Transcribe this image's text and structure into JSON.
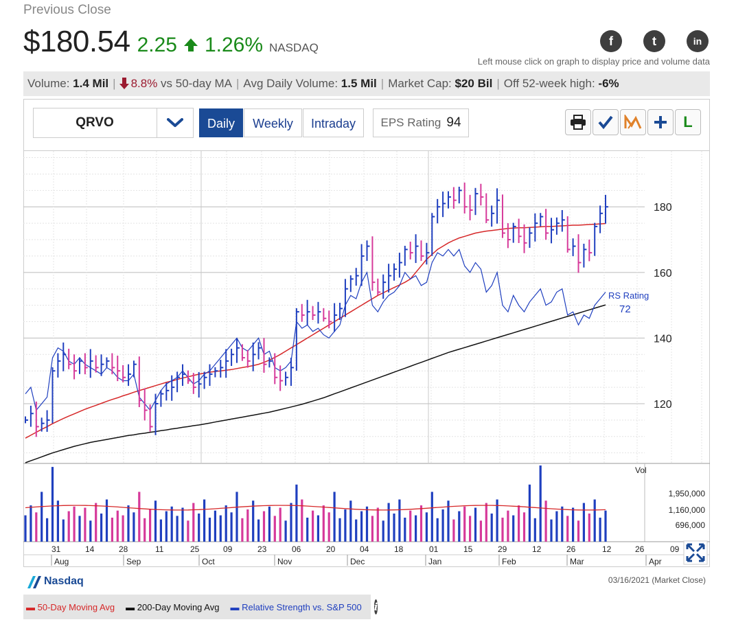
{
  "header": {
    "label": "Previous Close",
    "price": "$180.54",
    "change": "2.25",
    "change_pct": "1.26%",
    "exchange": "NASDAQ",
    "hint": "Left mouse click on graph to display price and volume data",
    "social": [
      {
        "name": "facebook-icon",
        "glyph": "f"
      },
      {
        "name": "twitter-icon",
        "glyph": "t"
      },
      {
        "name": "linkedin-icon",
        "glyph": "in"
      }
    ]
  },
  "stats": {
    "volume_label": "Volume:",
    "volume_value": "1.4 Mil",
    "vs_ma_value": "8.8%",
    "vs_ma_label": "vs 50-day MA",
    "avg_vol_label": "Avg Daily Volume:",
    "avg_vol_value": "1.5 Mil",
    "mcap_label": "Market Cap:",
    "mcap_value": "$20 Bil",
    "off_high_label": "Off 52-week high:",
    "off_high_value": "-6%"
  },
  "toolbar": {
    "symbol": "QRVO",
    "tabs": [
      "Daily",
      "Weekly",
      "Intraday"
    ],
    "active_tab": "Daily",
    "eps_label": "EPS Rating",
    "eps_value": "94",
    "tools": [
      "print-icon",
      "checkmark-icon",
      "marketsmith-icon",
      "plus-icon",
      "leaderboard-icon"
    ],
    "tool_l": "L"
  },
  "chart_data": {
    "type": "line",
    "price_axis": {
      "ticks": [
        "180",
        "160",
        "140",
        "120"
      ],
      "values": [
        180,
        160,
        140,
        120
      ],
      "ylim": [
        102,
        197
      ]
    },
    "volume_axis": {
      "title": "Vol",
      "ticks": [
        "1,950,000",
        "1,160,000",
        "696,000"
      ]
    },
    "x_day_labels": [
      "31",
      "14",
      "28",
      "11",
      "25",
      "09",
      "23",
      "06",
      "20",
      "04",
      "18",
      "01",
      "15",
      "29",
      "12",
      "26",
      "12",
      "26",
      "09"
    ],
    "x_month_labels": [
      "Aug",
      "Sep",
      "Oct",
      "Nov",
      "Dec",
      "Jan",
      "Feb",
      "Mar",
      "Apr"
    ],
    "rs_label": "RS Rating",
    "rs_value": "72",
    "price_close": [
      115,
      117,
      113,
      114,
      115,
      130,
      133,
      135,
      132,
      130,
      133,
      131,
      133,
      131,
      132,
      133,
      131,
      130,
      128,
      129,
      132,
      121,
      118,
      113,
      120,
      123,
      124,
      125,
      128,
      129,
      127,
      125,
      126,
      128,
      129,
      130,
      131,
      133,
      135,
      137,
      134,
      133,
      135,
      137,
      132,
      133,
      128,
      127,
      128,
      131,
      148,
      147,
      148,
      147,
      148,
      146,
      145,
      147,
      149,
      155,
      158,
      159,
      165,
      168,
      157,
      154,
      157,
      159,
      161,
      163,
      167,
      166,
      168,
      165,
      166,
      177,
      180,
      181,
      183,
      182,
      185,
      180,
      179,
      184,
      183,
      176,
      178,
      182,
      172,
      170,
      174,
      171,
      169,
      172,
      175,
      177,
      172,
      173,
      175,
      176,
      167,
      168,
      163,
      167,
      166,
      174,
      178,
      180
    ],
    "ma50": [
      109.5,
      110.4,
      111.3,
      112.2,
      113.0,
      113.9,
      114.7,
      115.5,
      116.2,
      116.9,
      117.6,
      118.3,
      118.9,
      119.5,
      120.1,
      120.7,
      121.3,
      121.8,
      122.4,
      122.9,
      123.5,
      124.0,
      124.5,
      125.0,
      125.5,
      126.0,
      126.5,
      126.9,
      127.4,
      127.8,
      128.2,
      128.6,
      129.0,
      129.3,
      129.6,
      129.8,
      130.0,
      130.2,
      130.4,
      130.7,
      131.0,
      131.3,
      131.6,
      132.0,
      132.6,
      133.3,
      134.1,
      135.0,
      136.0,
      137.0,
      138.0,
      139.0,
      140.0,
      141.0,
      142.0,
      143.0,
      144.0,
      145.0,
      146.0,
      147.0,
      148.0,
      149.0,
      150.0,
      151.0,
      152.0,
      153.0,
      153.8,
      154.6,
      155.4,
      156.2,
      157.0,
      158.0,
      160.0,
      162.0,
      164.0,
      165.5,
      167.0,
      168.0,
      169.0,
      169.8,
      170.5,
      171.0,
      171.5,
      172.0,
      172.3,
      172.6,
      172.8,
      173.0,
      173.2,
      173.4,
      173.5,
      173.6,
      173.6,
      173.7,
      173.8,
      173.9,
      174.0,
      174.0,
      174.1,
      174.2,
      174.3,
      174.4,
      174.4,
      174.5,
      174.6,
      174.7,
      174.8,
      174.9
    ],
    "ma200": [
      102.0,
      102.6,
      103.2,
      103.8,
      104.4,
      105.0,
      105.5,
      106.0,
      106.5,
      107.0,
      107.4,
      107.8,
      108.2,
      108.5,
      108.8,
      109.1,
      109.4,
      109.7,
      110.0,
      110.3,
      110.5,
      110.8,
      111.0,
      111.3,
      111.5,
      111.8,
      112.0,
      112.3,
      112.5,
      112.8,
      113.0,
      113.3,
      113.5,
      113.8,
      114.1,
      114.4,
      114.7,
      115.0,
      115.3,
      115.6,
      115.9,
      116.2,
      116.5,
      116.8,
      117.1,
      117.4,
      117.8,
      118.2,
      118.6,
      119.0,
      119.4,
      119.8,
      120.3,
      120.8,
      121.3,
      121.8,
      122.4,
      123.0,
      123.6,
      124.2,
      124.8,
      125.4,
      126.0,
      126.6,
      127.2,
      127.8,
      128.4,
      129.0,
      129.6,
      130.2,
      130.8,
      131.4,
      132.0,
      132.6,
      133.2,
      133.8,
      134.4,
      135.0,
      135.6,
      136.1,
      136.6,
      137.1,
      137.6,
      138.1,
      138.6,
      139.1,
      139.6,
      140.1,
      140.6,
      141.1,
      141.6,
      142.1,
      142.6,
      143.1,
      143.6,
      144.1,
      144.6,
      145.1,
      145.6,
      146.1,
      146.6,
      147.1,
      147.6,
      148.1,
      148.6,
      149.1,
      149.6,
      150.1
    ],
    "rs_line": [
      123,
      125,
      118,
      120,
      122,
      134,
      137,
      136,
      133,
      132,
      134,
      132,
      131,
      130,
      129,
      131,
      130,
      128,
      127,
      127,
      129,
      122,
      120,
      118,
      121,
      124,
      126,
      127,
      128,
      130,
      128,
      126,
      127,
      129,
      130,
      132,
      134,
      136,
      138,
      140,
      137,
      136,
      138,
      140,
      135,
      136,
      131,
      130,
      131,
      133,
      145,
      143,
      144,
      142,
      143,
      141,
      140,
      142,
      144,
      150,
      153,
      152,
      157,
      160,
      150,
      148,
      151,
      153,
      154,
      156,
      160,
      158,
      159,
      156,
      157,
      163,
      166,
      165,
      167,
      165,
      167,
      162,
      160,
      163,
      161,
      154,
      156,
      160,
      150,
      148,
      153,
      150,
      148,
      151,
      153,
      155,
      150,
      151,
      154,
      155,
      147,
      148,
      144,
      147,
      146,
      150,
      152,
      154
    ],
    "volume_up_down": "alternating up (blue) and down (magenta) sessions",
    "volume_ma_level": 1160000,
    "series": [
      {
        "name": "50-Day Moving Avg",
        "color": "#d62728"
      },
      {
        "name": "200-Day Moving Avg",
        "color": "#111111"
      },
      {
        "name": "Relative Strength vs. S&P 500",
        "color": "#1f3fbf"
      }
    ],
    "legend": {
      "position": "bottom-left"
    },
    "grid": true
  },
  "footer": {
    "logo_text": "Nasdaq",
    "as_of": "03/16/2021 (Market Close)",
    "legend_ma50": "50-Day Moving Avg",
    "legend_ma200": "200-Day Moving Avg",
    "legend_rs": "Relative Strength vs. S&P 500"
  },
  "colors": {
    "up": "#1f3fbf",
    "down": "#d6399a",
    "ma50": "#d62728",
    "ma200": "#111111",
    "rs": "#1f3fbf",
    "accent": "#1a4a95",
    "gain": "#1a8a1a",
    "loss": "#9b1b30"
  }
}
